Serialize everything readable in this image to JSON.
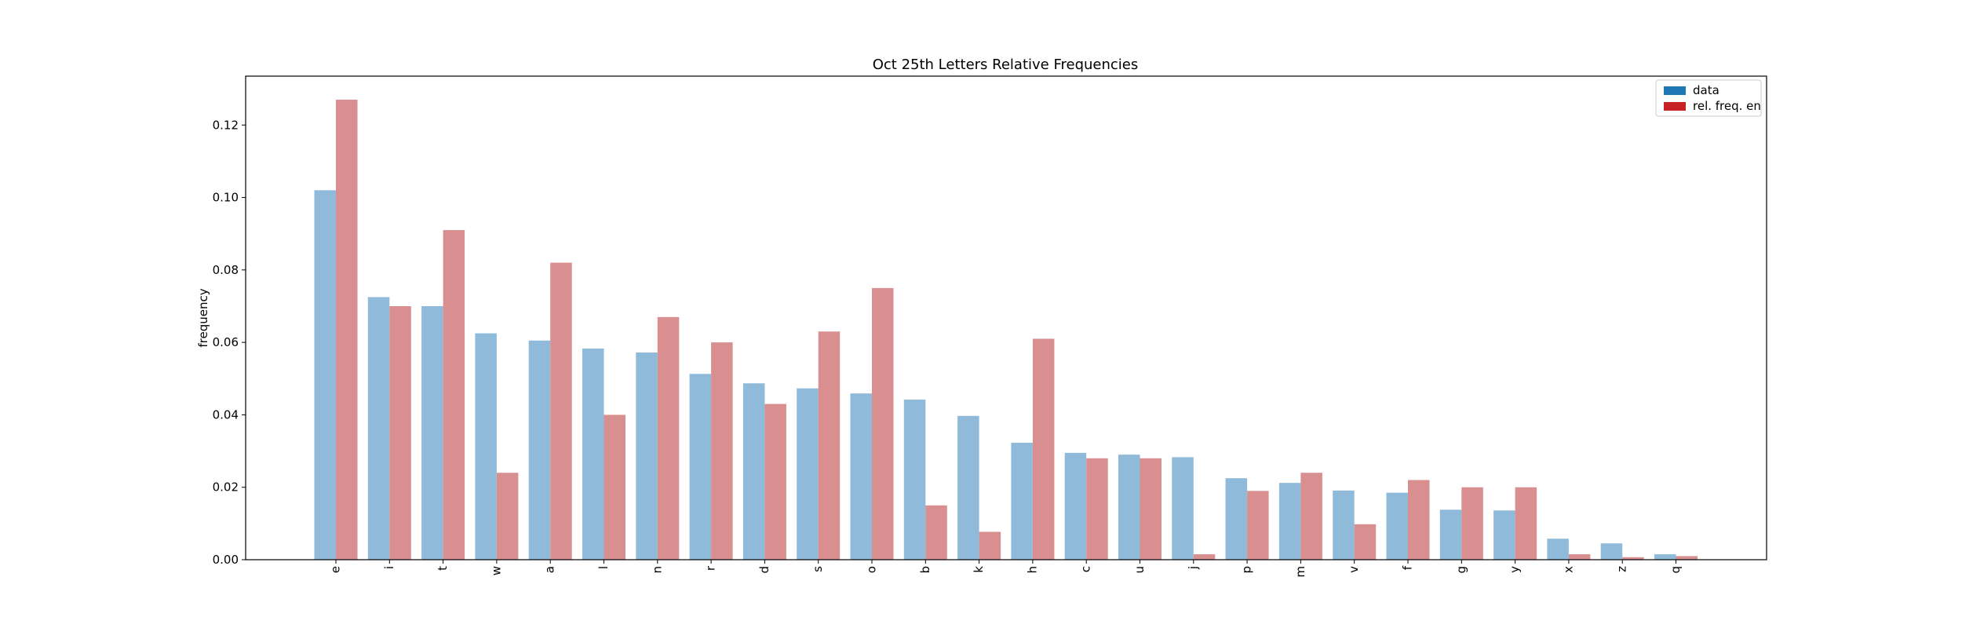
{
  "chart_data": {
    "type": "bar",
    "title": "Oct 25th Letters Relative Frequencies",
    "xlabel": "",
    "ylabel": "frequency",
    "ylim": [
      0,
      0.1335
    ],
    "yticks": [
      0.0,
      0.02,
      0.04,
      0.06,
      0.08,
      0.1,
      0.12
    ],
    "ytick_labels": [
      "0.00",
      "0.02",
      "0.04",
      "0.06",
      "0.08",
      "0.10",
      "0.12"
    ],
    "grid": false,
    "legend_placement": "top-right",
    "categories": [
      "e",
      "i",
      "t",
      "w",
      "a",
      "l",
      "n",
      "r",
      "d",
      "s",
      "o",
      "b",
      "k",
      "h",
      "c",
      "u",
      "j",
      "p",
      "m",
      "v",
      "f",
      "g",
      "y",
      "x",
      "z",
      "q"
    ],
    "series": [
      {
        "name": "data",
        "legend_color": "#1f77b4",
        "bar_color": "#8fbad9",
        "values": [
          0.102,
          0.0725,
          0.07,
          0.0625,
          0.0605,
          0.0583,
          0.0572,
          0.0513,
          0.0487,
          0.0473,
          0.0459,
          0.0442,
          0.0397,
          0.0323,
          0.0295,
          0.029,
          0.0283,
          0.0225,
          0.0212,
          0.0191,
          0.0185,
          0.0138,
          0.0136,
          0.0058,
          0.0045,
          0.0015
        ]
      },
      {
        "name": "rel. freq. en",
        "legend_color": "#c72025",
        "bar_color": "#d98f8f",
        "values": [
          0.127,
          0.07,
          0.091,
          0.024,
          0.082,
          0.04,
          0.067,
          0.06,
          0.043,
          0.063,
          0.075,
          0.015,
          0.0077,
          0.061,
          0.028,
          0.028,
          0.0015,
          0.019,
          0.024,
          0.0098,
          0.022,
          0.02,
          0.02,
          0.0015,
          0.0007,
          0.001
        ]
      }
    ]
  }
}
